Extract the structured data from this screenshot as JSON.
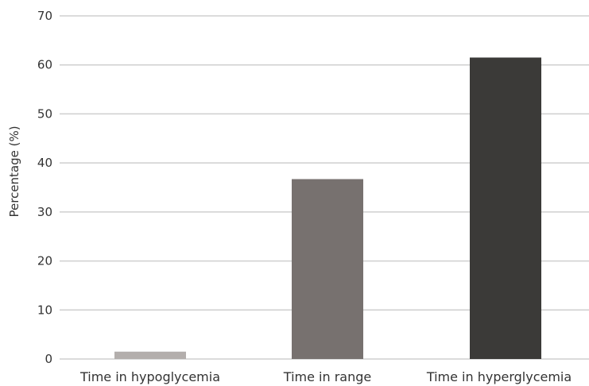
{
  "chart_data": {
    "type": "bar",
    "title": "",
    "xlabel": "",
    "ylabel": "Percentage (%)",
    "categories": [
      "Time in hypoglycemia",
      "Time in range",
      "Time in hyperglycemia"
    ],
    "values": [
      1.5,
      36.7,
      61.5
    ],
    "colors": [
      "#b3aeac",
      "#77716f",
      "#3b3a38"
    ],
    "ylim": [
      0,
      70
    ],
    "yticks": [
      0,
      10,
      20,
      30,
      40,
      50,
      60,
      70
    ],
    "grid": true,
    "legend": "none"
  }
}
